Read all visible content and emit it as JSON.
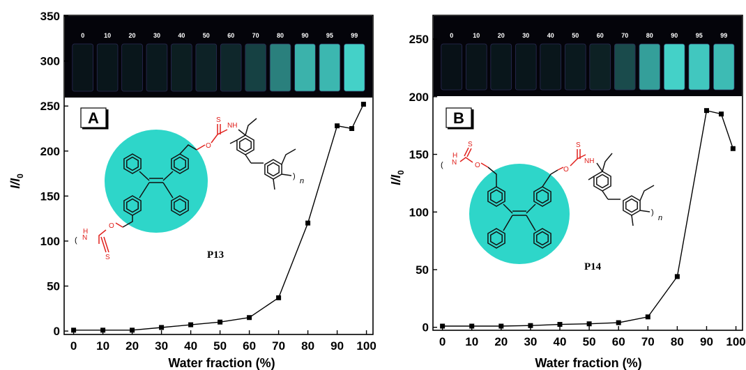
{
  "chart_data": [
    {
      "type": "line",
      "panel_label": "A",
      "polymer_label": "P13",
      "xlabel": "Water fraction (%)",
      "ylabel": "I/I0",
      "x": [
        0,
        10,
        20,
        30,
        40,
        50,
        60,
        70,
        80,
        90,
        95,
        99
      ],
      "values": [
        1,
        1,
        1,
        4,
        7,
        10,
        15,
        37,
        120,
        228,
        225,
        252
      ],
      "xlim": [
        -3,
        102
      ],
      "ylim": [
        -3,
        350
      ],
      "xticks": [
        "0",
        "10",
        "20",
        "30",
        "40",
        "50",
        "60",
        "70",
        "80",
        "90",
        "100"
      ],
      "yticks": [
        "0",
        "50",
        "100",
        "150",
        "200",
        "250",
        "300",
        "350"
      ],
      "vial_labels": [
        "0",
        "10",
        "20",
        "30",
        "40",
        "50",
        "60",
        "70",
        "80",
        "90",
        "95",
        "99"
      ],
      "vial_glow": [
        0.02,
        0.03,
        0.04,
        0.05,
        0.07,
        0.09,
        0.12,
        0.25,
        0.55,
        0.8,
        0.82,
        0.95
      ]
    },
    {
      "type": "line",
      "panel_label": "B",
      "polymer_label": "P14",
      "xlabel": "Water fraction (%)",
      "ylabel": "I/I0",
      "x": [
        0,
        10,
        20,
        30,
        40,
        50,
        60,
        70,
        80,
        90,
        95,
        99
      ],
      "values": [
        1,
        1,
        1,
        1.5,
        2.5,
        3,
        4,
        9,
        44,
        188,
        185,
        155
      ],
      "xlim": [
        -3,
        102
      ],
      "ylim": [
        -2,
        270
      ],
      "xticks": [
        "0",
        "10",
        "20",
        "30",
        "40",
        "50",
        "60",
        "70",
        "80",
        "90",
        "100"
      ],
      "yticks": [
        "0",
        "50",
        "100",
        "150",
        "200",
        "250"
      ],
      "vial_labels": [
        "0",
        "10",
        "20",
        "30",
        "40",
        "50",
        "60",
        "70",
        "80",
        "90",
        "95",
        "99"
      ],
      "vial_glow": [
        0.01,
        0.02,
        0.03,
        0.03,
        0.04,
        0.05,
        0.08,
        0.3,
        0.7,
        0.95,
        0.9,
        0.85
      ]
    }
  ],
  "colors": {
    "highlight_circle": "#2ed6c9",
    "vial_glow": "#4ff3e8",
    "heteroatom": "#e0201c",
    "photo_background": "#04040a"
  },
  "structure_text": {
    "sulfur": "S",
    "nh": "NH",
    "n": "N",
    "h": "H",
    "oxygen": "O",
    "repeat_index": "n"
  }
}
